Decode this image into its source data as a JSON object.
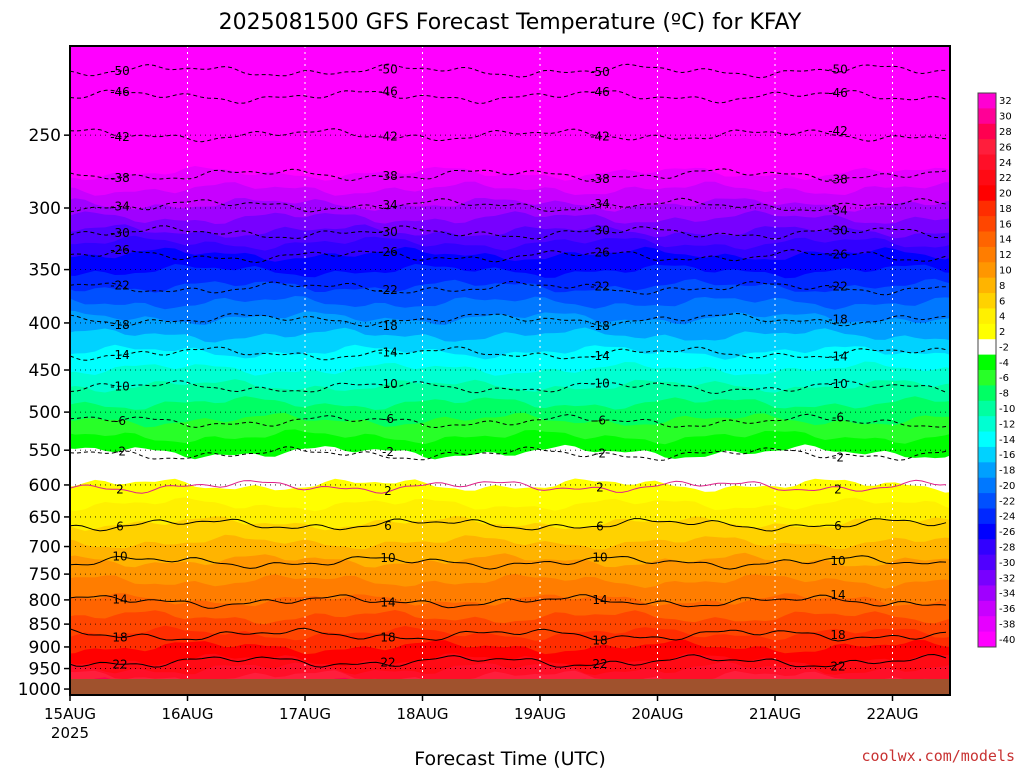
{
  "chart_data": {
    "type": "heatmap",
    "title": "2025081500 GFS Forecast Temperature (ºC) for KFAY",
    "xlabel": "Forecast Time (UTC)",
    "ylabel": "",
    "credit": "coolwx.com/models",
    "x_ticks": [
      "15AUG",
      "16AUG",
      "17AUG",
      "18AUG",
      "19AUG",
      "20AUG",
      "21AUG",
      "22AUG"
    ],
    "x_ticks_year": "2025",
    "y_ticks": [
      250,
      300,
      350,
      400,
      450,
      500,
      550,
      600,
      650,
      700,
      750,
      800,
      850,
      900,
      950,
      1000
    ],
    "y_axis": "pressure (hPa), decreasing upward",
    "ylim": [
      1015,
      200
    ],
    "grid": true,
    "colorbar": {
      "position": "right",
      "labels": [
        "32",
        "30",
        "28",
        "26",
        "24",
        "22",
        "20",
        "18",
        "16",
        "14",
        "12",
        "10",
        "8",
        "6",
        "4",
        "2",
        "-2",
        "-4",
        "-6",
        "-8",
        "-10",
        "-12",
        "-14",
        "-16",
        "-18",
        "-20",
        "-22",
        "-24",
        "-26",
        "-28",
        "-30",
        "-32",
        "-34",
        "-36",
        "-38",
        "-40"
      ],
      "colors": [
        "#ff00d2",
        "#ff0096",
        "#ff0050",
        "#ff1e3c",
        "#ff0f28",
        "#ff0a14",
        "#ff0000",
        "#ff2d00",
        "#ff4600",
        "#ff6400",
        "#ff7d00",
        "#ff9600",
        "#ffb400",
        "#ffd200",
        "#fff000",
        "#ffff00",
        "#ffffff",
        "#00ff00",
        "#28ff28",
        "#00ff64",
        "#00ffa0",
        "#00ffd2",
        "#00ffff",
        "#00d2ff",
        "#00a0ff",
        "#0078ff",
        "#0050ff",
        "#0028ff",
        "#0000ff",
        "#3200ff",
        "#5000ff",
        "#7800ff",
        "#a000ff",
        "#c800ff",
        "#e600ff",
        "#ff00ff"
      ]
    },
    "isotherm_labels": [
      "-50",
      "-46",
      "-42",
      "-38",
      "-34",
      "-30",
      "-26",
      "-22",
      "-18",
      "-14",
      "-10",
      "-6",
      "-2",
      "2",
      "6",
      "10",
      "14",
      "18",
      "22"
    ],
    "isotherms": [
      {
        "temp": -50,
        "p": 212
      },
      {
        "temp": -46,
        "p": 226
      },
      {
        "temp": -42,
        "p": 249
      },
      {
        "temp": -38,
        "p": 275
      },
      {
        "temp": -34,
        "p": 297
      },
      {
        "temp": -30,
        "p": 318
      },
      {
        "temp": -26,
        "p": 337
      },
      {
        "temp": -22,
        "p": 365
      },
      {
        "temp": -18,
        "p": 395
      },
      {
        "temp": -14,
        "p": 430
      },
      {
        "temp": -10,
        "p": 468
      },
      {
        "temp": -6,
        "p": 510
      },
      {
        "temp": -2,
        "p": 553
      },
      {
        "temp": 2,
        "p": 600
      },
      {
        "temp": 6,
        "p": 660
      },
      {
        "temp": 10,
        "p": 725
      },
      {
        "temp": 14,
        "p": 800
      },
      {
        "temp": 18,
        "p": 870
      },
      {
        "temp": 22,
        "p": 930
      }
    ]
  }
}
